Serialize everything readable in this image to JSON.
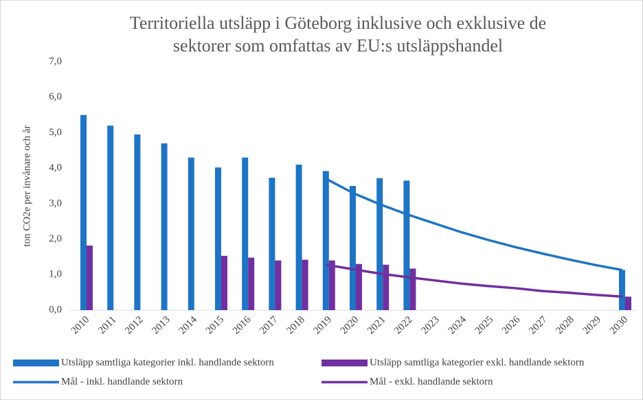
{
  "chart_data": {
    "type": "bar",
    "title": [
      "Territoriella utsläpp i Göteborg inklusive och exklusive de",
      "sektorer som omfattas av EU:s utsläppshandel"
    ],
    "ylabel": "ton CO2e per invånare och år",
    "categories": [
      "2010",
      "2011",
      "2012",
      "2013",
      "2014",
      "2015",
      "2016",
      "2017",
      "2018",
      "2019",
      "2020",
      "2021",
      "2022",
      "2023",
      "2024",
      "2025",
      "2026",
      "2027",
      "2028",
      "2029",
      "2030"
    ],
    "ylim": [
      0,
      7
    ],
    "yticks": [
      {
        "value": 0,
        "label": "0,0"
      },
      {
        "value": 1,
        "label": "1,0"
      },
      {
        "value": 2,
        "label": "2,0"
      },
      {
        "value": 3,
        "label": "3,0"
      },
      {
        "value": 4,
        "label": "4,0"
      },
      {
        "value": 5,
        "label": "5,0"
      },
      {
        "value": 6,
        "label": "6,0"
      },
      {
        "value": 7,
        "label": "7,0"
      }
    ],
    "grid": false,
    "legend": "bottom",
    "series": [
      {
        "name": "Utsläpp samtliga kategorier inkl. handlande sektorn",
        "type": "bar",
        "color": "#1f74c4",
        "values": [
          5.5,
          5.2,
          4.95,
          4.7,
          4.3,
          4.02,
          4.3,
          3.73,
          4.1,
          3.92,
          3.5,
          3.72,
          3.65,
          null,
          null,
          null,
          null,
          null,
          null,
          null,
          1.13
        ]
      },
      {
        "name": "Utsläpp samtliga kategorier exkl. handlande sektorn",
        "type": "bar",
        "color": "#7030a0",
        "values": [
          1.82,
          null,
          null,
          null,
          null,
          1.53,
          1.48,
          1.4,
          1.42,
          1.4,
          1.3,
          1.28,
          1.17,
          null,
          null,
          null,
          null,
          null,
          null,
          null,
          0.38
        ]
      },
      {
        "name": "Mål - inkl. handlande sektorn",
        "type": "line",
        "color": "#1f74c4",
        "values": [
          null,
          null,
          null,
          null,
          null,
          null,
          null,
          null,
          null,
          3.7,
          3.3,
          2.98,
          2.7,
          2.45,
          2.2,
          1.98,
          1.78,
          1.6,
          1.43,
          1.27,
          1.13
        ]
      },
      {
        "name": "Mål - exkl. handlande sektorn",
        "type": "line",
        "color": "#7030a0",
        "values": [
          null,
          null,
          null,
          null,
          null,
          null,
          null,
          null,
          null,
          1.28,
          1.15,
          1.03,
          0.93,
          0.84,
          0.75,
          0.68,
          0.62,
          0.54,
          0.49,
          0.43,
          0.38
        ]
      }
    ]
  }
}
